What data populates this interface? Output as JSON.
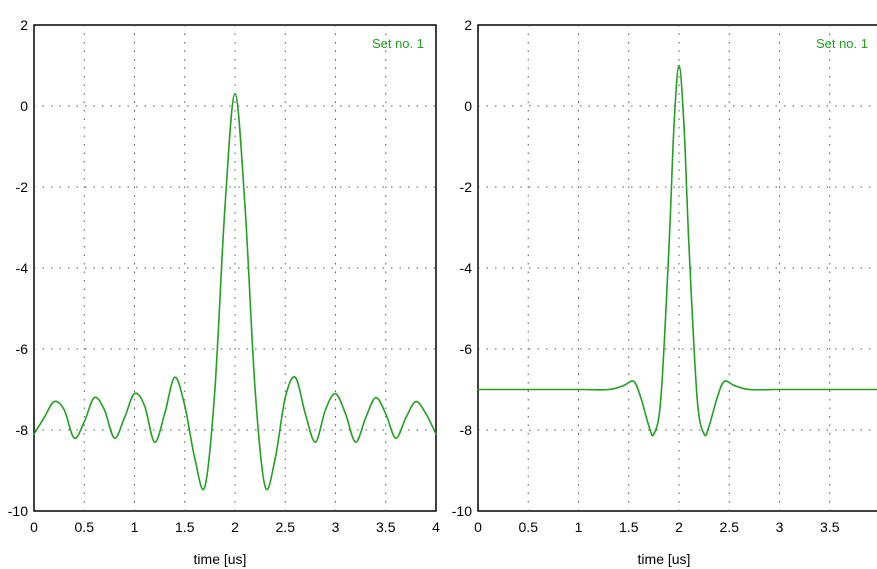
{
  "chart_data": [
    {
      "type": "line",
      "xlabel": "time [us]",
      "ylabel": "",
      "xlim": [
        0,
        4
      ],
      "ylim": [
        -10,
        2
      ],
      "xticks": [
        0,
        0.5,
        1,
        1.5,
        2,
        2.5,
        3,
        3.5,
        4
      ],
      "xtick_labels": [
        "0",
        "0.5",
        "1",
        "1.5",
        "2",
        "2.5",
        "3",
        "3.5",
        "4"
      ],
      "yticks": [
        2,
        0,
        -2,
        -4,
        -6,
        -8,
        -10
      ],
      "ytick_labels": [
        "2",
        "0",
        "-2",
        "-4",
        "-6",
        "-8",
        "-10"
      ],
      "grid": true,
      "annotation": "Set no. 1",
      "annotation_position": "top-right",
      "color": "#22a022",
      "series": [
        {
          "x": [
            0,
            0.1,
            0.2,
            0.3,
            0.4,
            0.5,
            0.6,
            0.7,
            0.8,
            0.9,
            1.0,
            1.1,
            1.2,
            1.3,
            1.4,
            1.5,
            1.6,
            1.7,
            1.8,
            1.9,
            2.0,
            2.1,
            2.2,
            2.3,
            2.4,
            2.5,
            2.6,
            2.7,
            2.8,
            2.9,
            3.0,
            3.1,
            3.2,
            3.3,
            3.4,
            3.5,
            3.6,
            3.7,
            3.8,
            3.9,
            4.0
          ],
          "y": [
            -8.1,
            -7.7,
            -7.3,
            -7.5,
            -8.2,
            -7.8,
            -7.2,
            -7.5,
            -8.2,
            -7.7,
            -7.1,
            -7.4,
            -8.3,
            -7.6,
            -6.7,
            -7.4,
            -8.7,
            -9.4,
            -7.0,
            -2.5,
            0.3,
            -2.5,
            -7.0,
            -9.4,
            -8.7,
            -7.2,
            -6.7,
            -7.6,
            -8.3,
            -7.5,
            -7.1,
            -7.6,
            -8.3,
            -7.7,
            -7.2,
            -7.6,
            -8.2,
            -7.7,
            -7.3,
            -7.6,
            -8.1
          ]
        }
      ]
    },
    {
      "type": "line",
      "xlabel": "time [us]",
      "ylabel": "",
      "xlim": [
        0,
        4
      ],
      "ylim": [
        -10,
        2
      ],
      "xticks": [
        0,
        0.5,
        1,
        1.5,
        2,
        2.5,
        3,
        3.5
      ],
      "xtick_labels": [
        "0",
        "0.5",
        "1",
        "1.5",
        "2",
        "2.5",
        "3",
        "3.5"
      ],
      "yticks": [
        2,
        0,
        -2,
        -4,
        -6,
        -8,
        -10
      ],
      "ytick_labels": [
        "2",
        "0",
        "-2",
        "-4",
        "-6",
        "-8",
        "-10"
      ],
      "grid": true,
      "annotation": "Set no. 1",
      "annotation_position": "top-right",
      "color": "#22a022",
      "series": [
        {
          "x": [
            0,
            0.5,
            1.0,
            1.3,
            1.45,
            1.55,
            1.62,
            1.7,
            1.75,
            1.82,
            1.9,
            1.95,
            2.0,
            2.05,
            2.1,
            2.18,
            2.25,
            2.3,
            2.38,
            2.45,
            2.55,
            2.7,
            3.0,
            3.5,
            4.0
          ],
          "y": [
            -7.0,
            -7.0,
            -7.0,
            -7.0,
            -6.9,
            -6.8,
            -7.2,
            -7.9,
            -8.1,
            -7.2,
            -3.5,
            -0.5,
            1.0,
            -0.5,
            -3.5,
            -7.2,
            -8.1,
            -7.9,
            -7.2,
            -6.8,
            -6.9,
            -7.0,
            -7.0,
            -7.0,
            -7.0
          ]
        }
      ]
    }
  ]
}
